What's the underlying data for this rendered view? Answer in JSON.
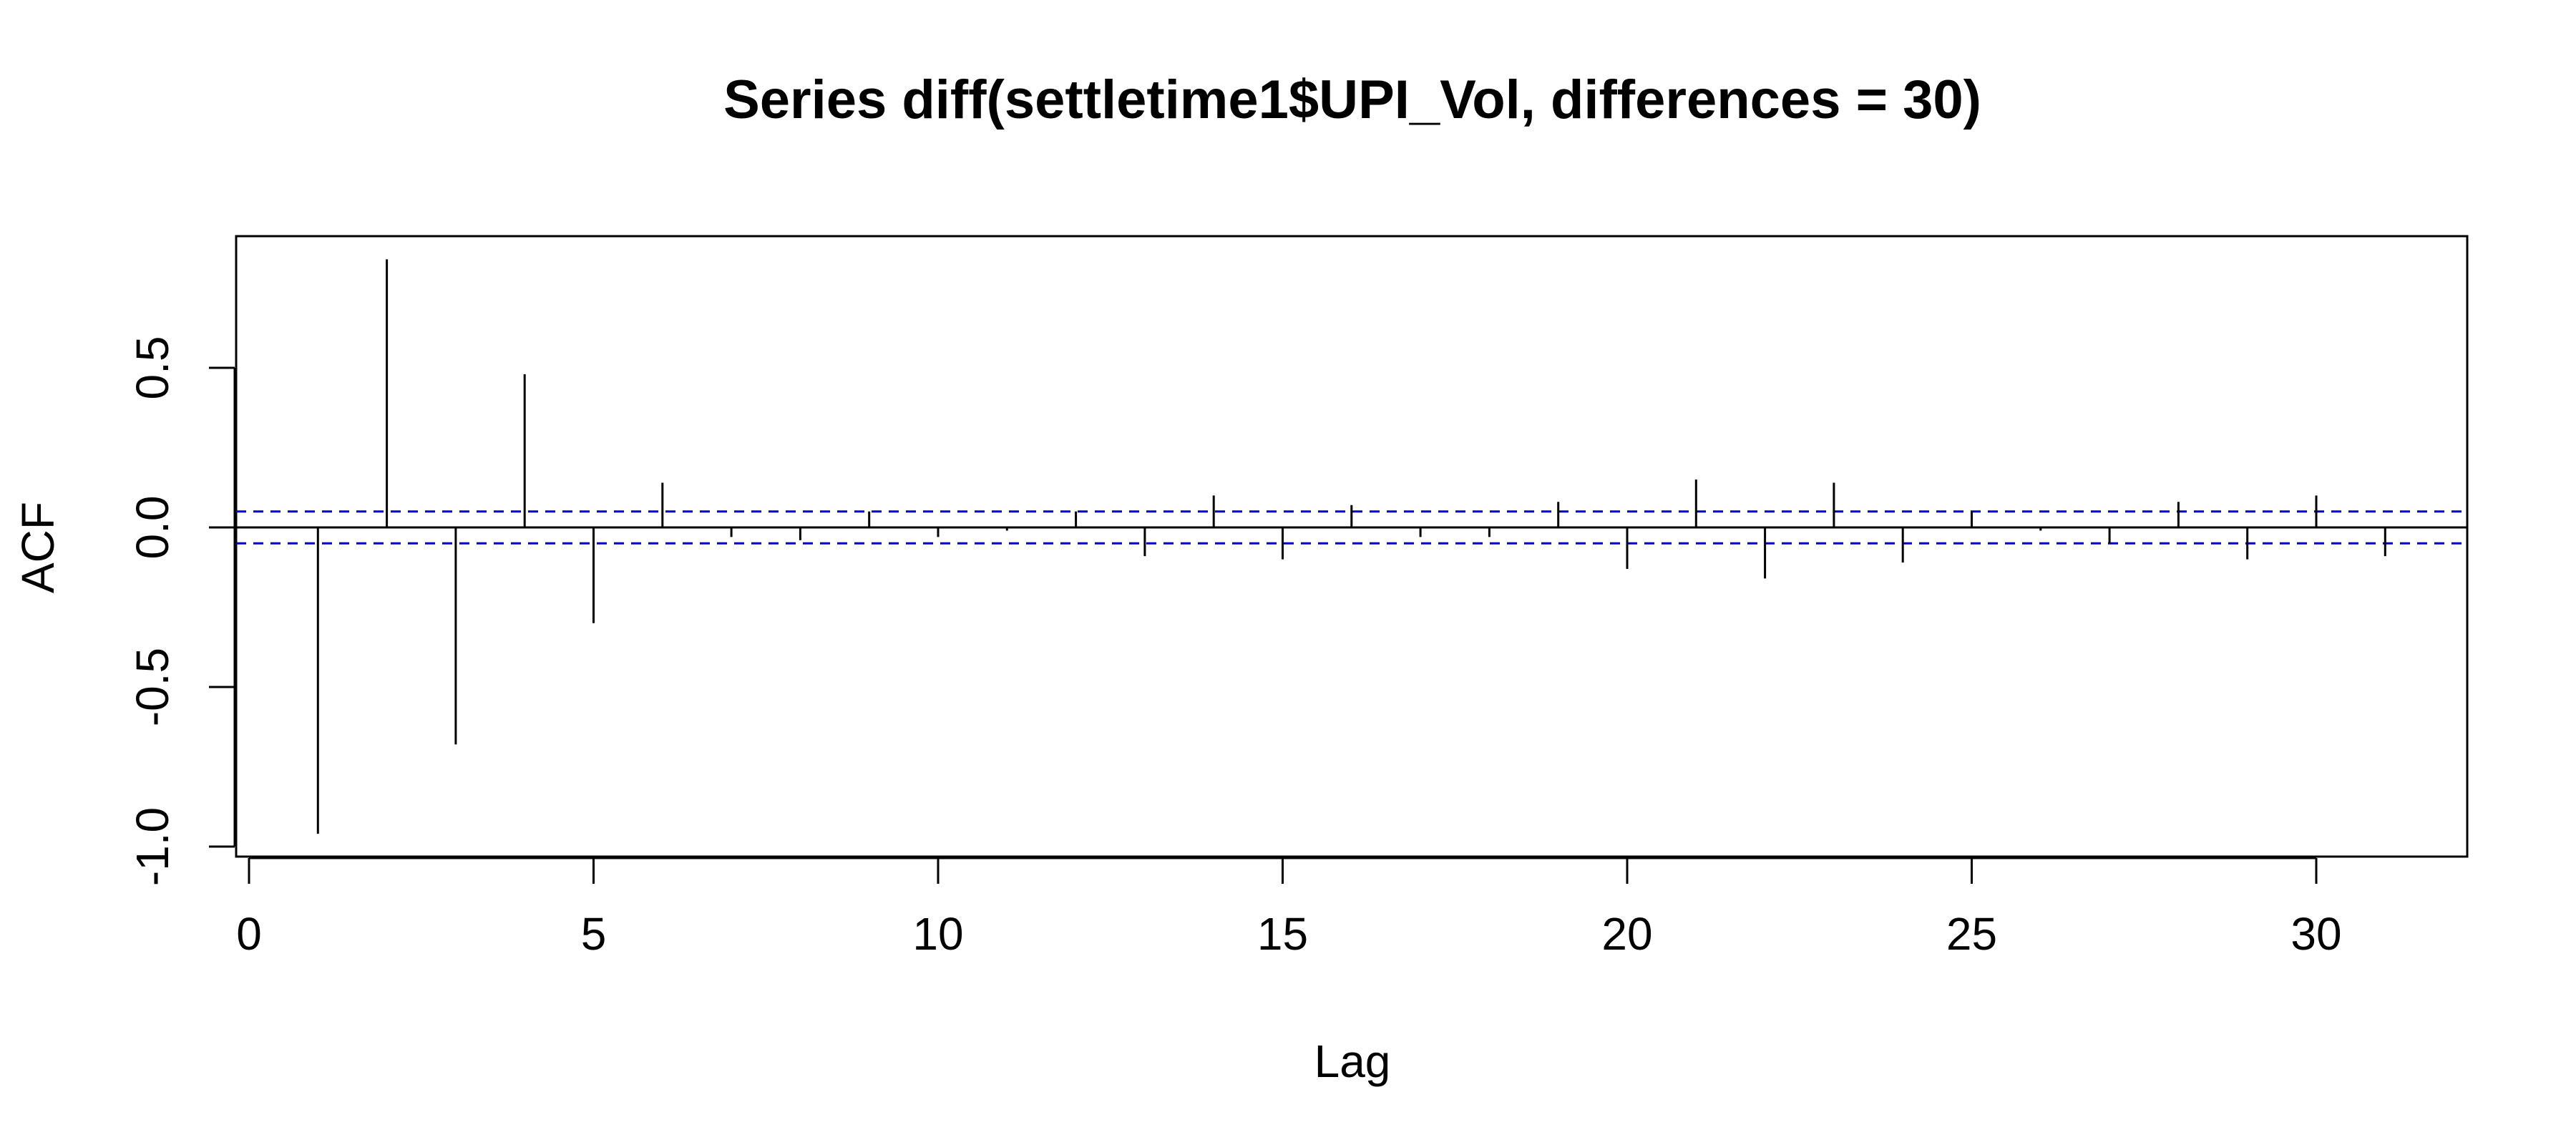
{
  "chart_data": {
    "type": "bar",
    "subtype": "acf-spike",
    "title": "Series  diff(settletime1$UPI_Vol, differences = 30)",
    "xlabel": "Lag",
    "ylabel": "ACF",
    "xlim": [
      0,
      32.2
    ],
    "ylim": [
      -1.0,
      0.9
    ],
    "x_ticks": [
      0,
      5,
      10,
      15,
      20,
      25,
      30
    ],
    "x_tick_labels": [
      "0",
      "5",
      "10",
      "15",
      "20",
      "25",
      "30"
    ],
    "y_ticks": [
      -1.0,
      -0.5,
      0.0,
      0.5
    ],
    "y_tick_labels": [
      "-1.0",
      "-0.5",
      "0.0",
      "0.5"
    ],
    "confidence_limit": 0.05,
    "confidence_color": "#0000cc",
    "grid": false,
    "legend": "none",
    "lags": [
      1,
      2,
      3,
      4,
      5,
      6,
      7,
      8,
      9,
      10,
      11,
      12,
      13,
      14,
      15,
      16,
      17,
      18,
      19,
      20,
      21,
      22,
      23,
      24,
      25,
      26,
      27,
      28,
      29,
      30,
      31
    ],
    "values": [
      -0.96,
      0.84,
      -0.68,
      0.48,
      -0.3,
      0.14,
      -0.03,
      -0.04,
      0.05,
      -0.03,
      -0.01,
      0.05,
      -0.09,
      0.1,
      -0.1,
      0.07,
      -0.03,
      -0.03,
      0.08,
      -0.13,
      0.15,
      -0.16,
      0.14,
      -0.11,
      0.05,
      -0.01,
      -0.05,
      0.08,
      -0.1,
      0.1,
      -0.09
    ]
  }
}
